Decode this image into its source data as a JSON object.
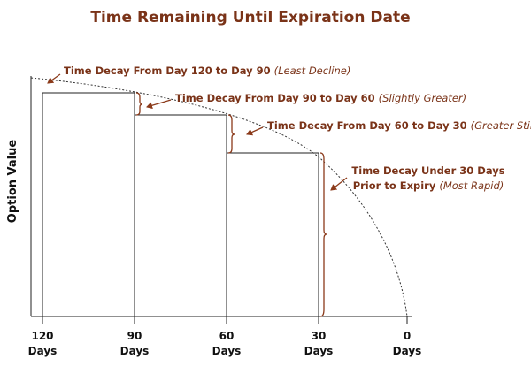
{
  "title": "Time Remaining Until Expiration Date",
  "y_axis_label": "Option Value",
  "x_ticks": [
    {
      "number": "120",
      "unit": "Days"
    },
    {
      "number": "90",
      "unit": "Days"
    },
    {
      "number": "60",
      "unit": "Days"
    },
    {
      "number": "30",
      "unit": "Days"
    },
    {
      "number": "0",
      "unit": "Days"
    }
  ],
  "annotations": [
    {
      "text": "Time Decay From Day 120 to Day 90",
      "note": "(Least Decline)"
    },
    {
      "text": "Time Decay From Day 90 to Day 60",
      "note": "(Slightly Greater)"
    },
    {
      "text": "Time Decay From Day 60 to Day 30",
      "note": "(Greater Still)"
    },
    {
      "line1": "Time Decay Under 30 Days",
      "text": "Prior to Expiry",
      "note": "(Most Rapid)"
    }
  ]
}
